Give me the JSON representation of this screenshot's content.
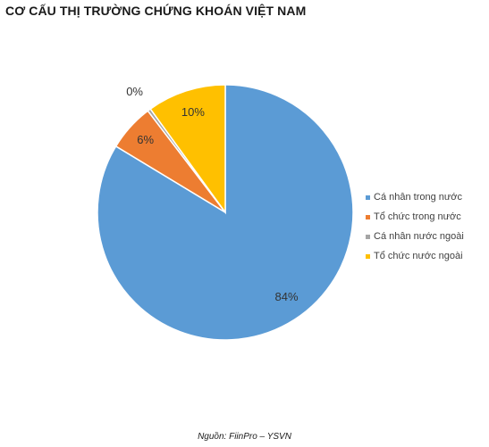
{
  "chart_data": {
    "type": "pie",
    "title": "CƠ CẤU THỊ TRƯỜNG CHỨNG KHOÁN VIỆT NAM",
    "source": "Nguồn: FiinPro – YSVN",
    "legend_position": "right",
    "slices": [
      {
        "name": "Cá nhân trong nước",
        "value": 84,
        "label": "84%",
        "color": "#5b9bd5"
      },
      {
        "name": "Tổ chức trong nước",
        "value": 6,
        "label": "6%",
        "color": "#ed7d31"
      },
      {
        "name": "Cá nhân nước ngoài",
        "value": 0.4,
        "label": "0%",
        "color": "#a5a5a5"
      },
      {
        "name": "Tổ chức nước ngoài",
        "value": 10,
        "label": "10%",
        "color": "#ffc000"
      }
    ]
  }
}
